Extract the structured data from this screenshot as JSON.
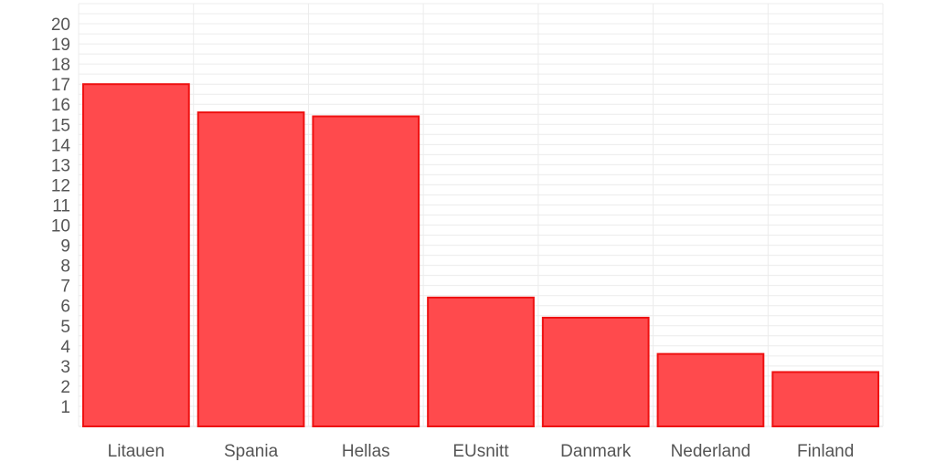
{
  "chart_data": {
    "type": "bar",
    "categories": [
      "Litauen",
      "Spania",
      "Hellas",
      "EUsnitt",
      "Danmark",
      "Nederland",
      "Finland"
    ],
    "values": [
      17.0,
      15.6,
      15.4,
      6.4,
      5.4,
      3.6,
      2.7
    ],
    "title": "",
    "xlabel": "",
    "ylabel": "",
    "ylim": [
      0,
      21
    ],
    "yticks": [
      1,
      2,
      3,
      4,
      5,
      6,
      7,
      8,
      9,
      10,
      11,
      12,
      13,
      14,
      15,
      16,
      17,
      18,
      19,
      20
    ],
    "grid": true,
    "bar_fill": "#ff4a4d",
    "bar_stroke": "#ee1111"
  }
}
